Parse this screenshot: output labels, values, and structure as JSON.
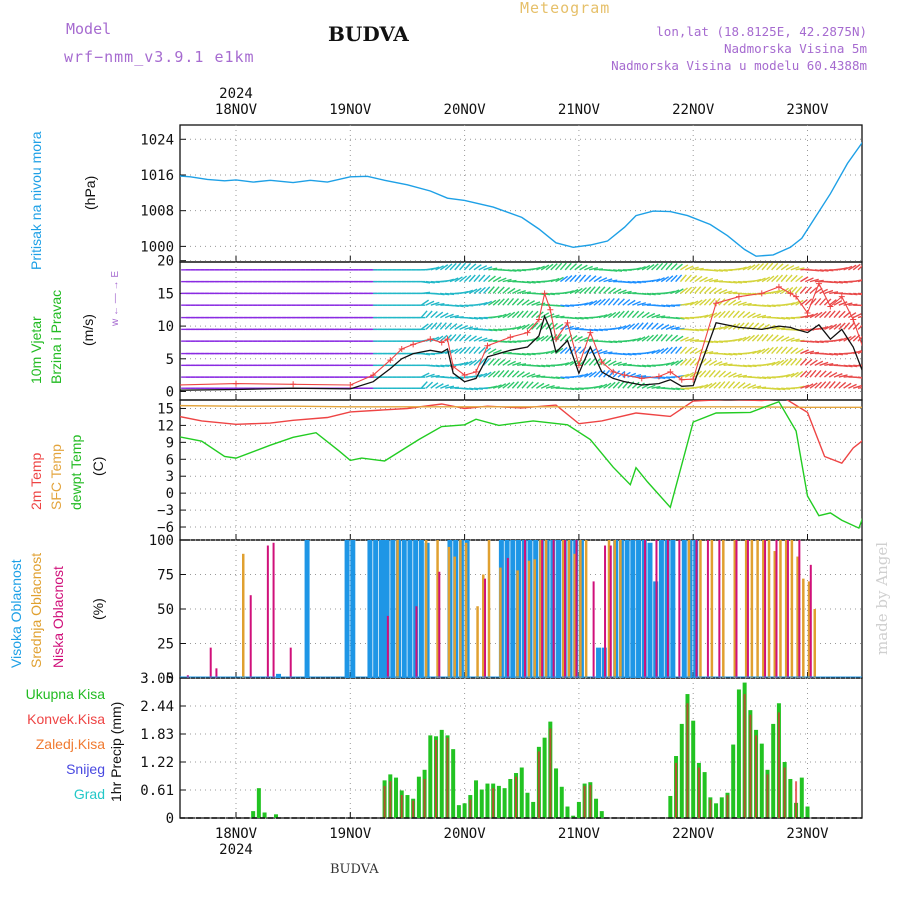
{
  "header": {
    "model_label": "Model",
    "model_name": "wrf−nmm_v3.9.1  e1km",
    "title": "BUDVA",
    "meteogram": "Meteogram",
    "lonlat": "lon,lat (18.8125E, 42.2875N)",
    "elevation": "Nadmorska Visina 5m",
    "model_elevation": "Nadmorska Visina u modelu 60.4388m"
  },
  "footer": {
    "station": "BUDVA",
    "watermark": "made by Angel"
  },
  "time_axis": {
    "year": "2024",
    "days": [
      "18NOV",
      "19NOV",
      "20NOV",
      "21NOV",
      "22NOV",
      "23NOV"
    ]
  },
  "colors": {
    "pressure": "#1ea0e6",
    "temp2m": "#ee4444",
    "sfc_temp": "#e3a43c",
    "dewpt": "#22cc22",
    "high_cloud": "#1e96e6",
    "mid_cloud": "#e0a030",
    "low_cloud": "#d0107a",
    "total_precip": "#22c322",
    "conv_precip": "#e03030",
    "frozen": "#f07a30",
    "snow": "#4848e0",
    "hail": "#22c8c8",
    "wind_speed": "#111111",
    "wind_gust": "#ee4444"
  },
  "labels": {
    "pressure_title": "Pritisak na nivou mora",
    "pressure_unit": "(hPa)",
    "wind_title1": "10m Vjetar",
    "wind_title2": "Brzina i Pravac",
    "wind_unit": "(m/s)",
    "wind_compass": "w ← — → E",
    "temp_title1": "2m Temp",
    "temp_title2": "SFC Temp",
    "temp_title3": "dewpt Temp",
    "temp_unit": "(C)",
    "cloud_title1": "Visoka Oblacnost",
    "cloud_title2": "Srednja Oblacnost",
    "cloud_title3": "Niska Oblacnost",
    "cloud_unit": "(%)",
    "precip_unit": "1hr Precip (mm)",
    "legend_total": "Ukupna Kisa",
    "legend_conv": "Konvek.Kisa",
    "legend_frozen": "Zaledj.Kisa",
    "legend_snow": "Snijeg",
    "legend_hail": "Grad"
  },
  "chart_data": [
    {
      "type": "line",
      "name": "pressure",
      "ylabel": "(hPa)",
      "yticks": [
        1000,
        1008,
        1016,
        1024
      ],
      "ylim": [
        996.5,
        1027.2
      ],
      "x_days": [
        -0.5,
        -0.4,
        -0.25,
        -0.1,
        0,
        0.15,
        0.3,
        0.5,
        0.65,
        0.8,
        1.0,
        1.15,
        1.3,
        1.5,
        1.7,
        1.85,
        2.0,
        2.25,
        2.5,
        2.65,
        2.8,
        2.95,
        3.1,
        3.25,
        3.4,
        3.5,
        3.65,
        3.8,
        3.95,
        4.15,
        4.3,
        4.45,
        4.55,
        4.7,
        4.85,
        4.95,
        5.05,
        5.2,
        5.35,
        5.5
      ],
      "values": [
        1015.8,
        1015.6,
        1015.0,
        1014.7,
        1014.9,
        1014.4,
        1014.8,
        1014.3,
        1014.8,
        1014.4,
        1015.6,
        1015.7,
        1014.8,
        1013.8,
        1012.4,
        1010.8,
        1010.3,
        1008.8,
        1006.5,
        1003.9,
        1000.8,
        999.8,
        1000.3,
        1001.2,
        1004.3,
        1006.9,
        1007.9,
        1007.8,
        1006.9,
        1004.9,
        1002.4,
        999.3,
        997.8,
        998.1,
        999.8,
        1001.8,
        1005.8,
        1011.8,
        1018.6,
        1024.0
      ]
    },
    {
      "type": "line",
      "name": "wind",
      "ylabel": "(m/s)",
      "yticks": [
        0,
        5,
        10,
        15,
        20
      ],
      "ylim": [
        -1.3,
        19.8
      ],
      "series": [
        {
          "name": "speed",
          "x_days": [
            -0.5,
            0.0,
            0.5,
            1.0,
            1.2,
            1.35,
            1.45,
            1.55,
            1.7,
            1.8,
            1.85,
            1.9,
            2.0,
            2.1,
            2.2,
            2.4,
            2.55,
            2.65,
            2.7,
            2.75,
            2.8,
            2.9,
            3.0,
            3.1,
            3.2,
            3.3,
            3.4,
            3.55,
            3.7,
            3.8,
            3.9,
            4.0,
            4.2,
            4.4,
            4.6,
            4.75,
            4.85,
            4.9,
            5.0,
            5.1,
            5.2,
            5.3,
            5.4,
            5.5
          ],
          "values": [
            0.2,
            0.3,
            0.5,
            0.4,
            1.5,
            3.5,
            5.0,
            5.8,
            6.3,
            6.0,
            6.5,
            2.8,
            1.5,
            2.0,
            5.3,
            6.3,
            6.8,
            8.5,
            11.5,
            9.5,
            6.0,
            7.8,
            2.8,
            6.8,
            3.0,
            2.0,
            1.5,
            1.0,
            1.2,
            1.8,
            0.8,
            0.9,
            10.5,
            9.8,
            9.5,
            10.0,
            9.8,
            9.5,
            9.0,
            10.2,
            8.0,
            9.5,
            6.8,
            2.3
          ]
        },
        {
          "name": "gust",
          "x_days": [
            -0.5,
            0.0,
            0.5,
            1.0,
            1.2,
            1.35,
            1.45,
            1.55,
            1.7,
            1.8,
            1.85,
            1.9,
            2.0,
            2.1,
            2.2,
            2.4,
            2.55,
            2.65,
            2.7,
            2.75,
            2.8,
            2.9,
            3.0,
            3.1,
            3.2,
            3.3,
            3.4,
            3.55,
            3.7,
            3.8,
            3.9,
            4.0,
            4.2,
            4.4,
            4.6,
            4.75,
            4.85,
            4.9,
            5.0,
            5.1,
            5.2,
            5.3,
            5.4,
            5.5
          ],
          "values": [
            1.0,
            1.2,
            1.1,
            1.0,
            2.5,
            4.8,
            6.5,
            7.2,
            8.0,
            7.5,
            8.0,
            3.8,
            2.5,
            3.0,
            7.0,
            8.3,
            9.0,
            11.0,
            15.0,
            12.5,
            8.0,
            10.5,
            4.0,
            9.0,
            4.5,
            3.0,
            2.5,
            2.0,
            2.3,
            3.0,
            1.8,
            1.9,
            13.5,
            14.5,
            15.0,
            16.0,
            15.0,
            14.5,
            12.0,
            16.5,
            13.0,
            14.5,
            11.0,
            6.0
          ]
        }
      ]
    },
    {
      "type": "line",
      "name": "temperature",
      "ylabel": "(C)",
      "yticks": [
        -6,
        -3,
        0,
        3,
        6,
        9,
        12,
        15
      ],
      "ylim": [
        -8.3,
        16.5
      ],
      "series": [
        {
          "name": "2m",
          "x_days": [
            -0.5,
            -0.3,
            0.0,
            0.3,
            0.5,
            0.8,
            1.0,
            1.5,
            1.8,
            2.0,
            2.2,
            2.5,
            2.8,
            3.0,
            3.2,
            3.5,
            3.8,
            4.0,
            4.3,
            4.6,
            4.8,
            5.0,
            5.15,
            5.3,
            5.4,
            5.5
          ],
          "values": [
            13.6,
            12.8,
            12.2,
            12.4,
            12.9,
            13.4,
            14.4,
            15.0,
            15.8,
            15.0,
            15.4,
            15.1,
            15.6,
            12.3,
            12.8,
            14.2,
            13.6,
            16.3,
            16.6,
            16.4,
            16.8,
            14.3,
            6.5,
            5.3,
            8.0,
            9.6
          ]
        },
        {
          "name": "sfc",
          "x_days": [
            -0.5,
            0.0,
            0.5,
            1.0,
            1.5,
            2.0,
            2.5,
            3.0,
            3.5,
            4.0,
            4.5,
            5.0,
            5.5
          ],
          "values": [
            15.5,
            15.4,
            15.4,
            15.3,
            15.3,
            15.3,
            15.3,
            15.3,
            15.3,
            15.3,
            15.3,
            15.2,
            15.2
          ]
        },
        {
          "name": "dewpt",
          "x_days": [
            -0.5,
            -0.3,
            -0.1,
            0.0,
            0.3,
            0.5,
            0.7,
            0.9,
            1.0,
            1.1,
            1.3,
            1.6,
            1.8,
            2.0,
            2.1,
            2.3,
            2.6,
            2.9,
            3.1,
            3.3,
            3.45,
            3.5,
            3.6,
            3.8,
            4.0,
            4.2,
            4.5,
            4.75,
            4.9,
            5.0,
            5.1,
            5.2,
            5.3,
            5.45,
            5.5
          ],
          "values": [
            10.0,
            9.2,
            6.5,
            6.2,
            8.5,
            9.9,
            10.7,
            7.5,
            5.8,
            6.2,
            5.7,
            9.5,
            11.8,
            12.1,
            13.1,
            12.0,
            12.8,
            12.1,
            9.5,
            4.6,
            1.5,
            4.5,
            2.0,
            -2.5,
            12.6,
            14.2,
            14.3,
            16.2,
            11.0,
            -0.5,
            -4.0,
            -3.5,
            -4.8,
            -6.2,
            -3.5
          ]
        }
      ]
    },
    {
      "type": "bar",
      "name": "cloud_cover",
      "ylabel": "(%)",
      "yticks": [
        0,
        25,
        50,
        75,
        100
      ],
      "ylim": [
        0,
        100
      ],
      "series": [
        {
          "name": "high",
          "x_days": [
            0.35,
            0.6,
            0.95,
            1.0,
            1.15,
            1.2,
            1.25,
            1.27,
            1.3,
            1.35,
            1.4,
            1.45,
            1.5,
            1.55,
            1.6,
            1.65,
            1.85,
            1.9,
            1.95,
            2.0,
            2.3,
            2.35,
            2.4,
            2.45,
            2.5,
            2.55,
            2.6,
            2.65,
            2.7,
            2.75,
            2.8,
            2.85,
            2.9,
            2.95,
            3.0,
            3.15,
            3.2,
            3.3,
            3.35,
            3.4,
            3.45,
            3.5,
            3.55,
            3.6,
            3.65,
            3.7,
            3.75,
            3.8,
            3.9,
            3.95,
            4.0
          ],
          "values": [
            3,
            100,
            100,
            100,
            100,
            100,
            100,
            100,
            100,
            100,
            100,
            100,
            100,
            100,
            100,
            98,
            100,
            100,
            100,
            100,
            100,
            100,
            100,
            100,
            100,
            100,
            100,
            100,
            100,
            100,
            100,
            100,
            100,
            100,
            100,
            22,
            22,
            100,
            100,
            100,
            100,
            100,
            100,
            98,
            70,
            100,
            100,
            100,
            100,
            100,
            100
          ]
        },
        {
          "name": "mid",
          "x_days": [
            0.0,
            1.35,
            1.6,
            1.7,
            1.8,
            1.85,
            1.9,
            1.95,
            2.05,
            2.1,
            2.15,
            2.25,
            2.4,
            2.5,
            2.55,
            2.6,
            2.65,
            2.8,
            2.85,
            2.9,
            2.95,
            3.0,
            3.2,
            3.25,
            3.3,
            3.9,
            4.0,
            4.1,
            4.2,
            4.3,
            4.4,
            4.45,
            4.5,
            4.55,
            4.6,
            4.65,
            4.7,
            4.75,
            4.8,
            4.85,
            4.9,
            4.95,
            5.0
          ],
          "values": [
            90,
            100,
            100,
            100,
            95,
            88,
            100,
            98,
            52,
            75,
            100,
            80,
            78,
            85,
            86,
            100,
            100,
            100,
            100,
            90,
            100,
            100,
            100,
            100,
            100,
            100,
            100,
            100,
            100,
            100,
            100,
            100,
            100,
            100,
            100,
            92,
            100,
            100,
            100,
            88,
            72,
            70,
            50
          ]
        },
        {
          "name": "low",
          "x_days": [
            -0.5,
            -0.3,
            -0.25,
            0.05,
            0.2,
            0.25,
            0.4,
            1.25,
            1.5,
            1.7,
            2.1,
            2.3,
            2.45,
            2.6,
            2.7,
            2.8,
            2.9,
            3.05,
            3.15,
            3.2,
            3.5,
            3.6,
            3.7,
            3.8,
            3.95,
            4.05,
            4.15,
            4.3,
            4.4,
            4.55,
            4.65,
            4.75,
            4.85,
            4.95
          ],
          "values": [
            2,
            22,
            7,
            60,
            96,
            98,
            22,
            45,
            52,
            77,
            72,
            87,
            100,
            100,
            100,
            100,
            100,
            70,
            96,
            96,
            100,
            100,
            100,
            100,
            100,
            100,
            100,
            100,
            100,
            100,
            100,
            100,
            100,
            82
          ]
        }
      ]
    },
    {
      "type": "bar",
      "name": "precip",
      "ylabel": "1hr Precip (mm)",
      "yticks": [
        0,
        0.61,
        1.22,
        1.83,
        2.44,
        3.05
      ],
      "ylim": [
        0,
        3.05
      ],
      "series": [
        {
          "name": "total",
          "x_days": [
            0.15,
            0.2,
            0.25,
            0.35,
            1.3,
            1.35,
            1.4,
            1.45,
            1.5,
            1.55,
            1.6,
            1.65,
            1.7,
            1.75,
            1.8,
            1.85,
            1.9,
            1.95,
            2.0,
            2.05,
            2.1,
            2.15,
            2.2,
            2.25,
            2.3,
            2.35,
            2.4,
            2.45,
            2.5,
            2.55,
            2.6,
            2.65,
            2.7,
            2.75,
            2.8,
            2.85,
            2.9,
            2.95,
            3.0,
            3.05,
            3.1,
            3.15,
            3.2,
            3.8,
            3.85,
            3.9,
            3.95,
            4.0,
            4.05,
            4.1,
            4.15,
            4.2,
            4.25,
            4.3,
            4.35,
            4.4,
            4.45,
            4.5,
            4.55,
            4.6,
            4.65,
            4.7,
            4.75,
            4.8,
            4.85,
            4.9,
            4.95,
            5.0
          ],
          "values": [
            0.15,
            0.65,
            0.12,
            0.08,
            0.82,
            0.95,
            0.88,
            0.6,
            0.5,
            0.42,
            0.9,
            1.05,
            1.8,
            1.78,
            1.92,
            1.8,
            1.5,
            0.28,
            0.32,
            0.5,
            0.82,
            0.62,
            0.75,
            0.75,
            0.7,
            0.65,
            0.85,
            0.98,
            1.1,
            0.55,
            0.35,
            1.55,
            1.75,
            2.1,
            1.08,
            0.68,
            0.25,
            0.05,
            0.35,
            0.75,
            0.78,
            0.42,
            0.15,
            0.48,
            1.35,
            2.05,
            2.7,
            2.12,
            1.2,
            1.0,
            0.45,
            0.32,
            0.45,
            0.55,
            1.6,
            2.8,
            2.95,
            2.35,
            1.92,
            1.62,
            1.05,
            2.05,
            2.5,
            1.22,
            0.85,
            0.33,
            0.88,
            0.25
          ]
        },
        {
          "name": "convective",
          "x_days": [
            1.3,
            1.35,
            1.45,
            1.55,
            1.65,
            1.75,
            1.85,
            2.05,
            2.25,
            2.45,
            2.65,
            2.75,
            3.05,
            3.1,
            3.85,
            3.95,
            4.05,
            4.15,
            4.3,
            4.45,
            4.5,
            4.55,
            4.65,
            4.75,
            4.8,
            4.9
          ],
          "values": [
            0.7,
            0.8,
            0.5,
            0.38,
            0.85,
            1.7,
            1.75,
            0.4,
            0.65,
            0.9,
            1.45,
            1.95,
            0.7,
            0.72,
            1.2,
            2.5,
            1.1,
            0.4,
            0.5,
            2.7,
            2.25,
            1.8,
            0.95,
            2.3,
            1.1,
            0.8
          ]
        }
      ]
    }
  ]
}
